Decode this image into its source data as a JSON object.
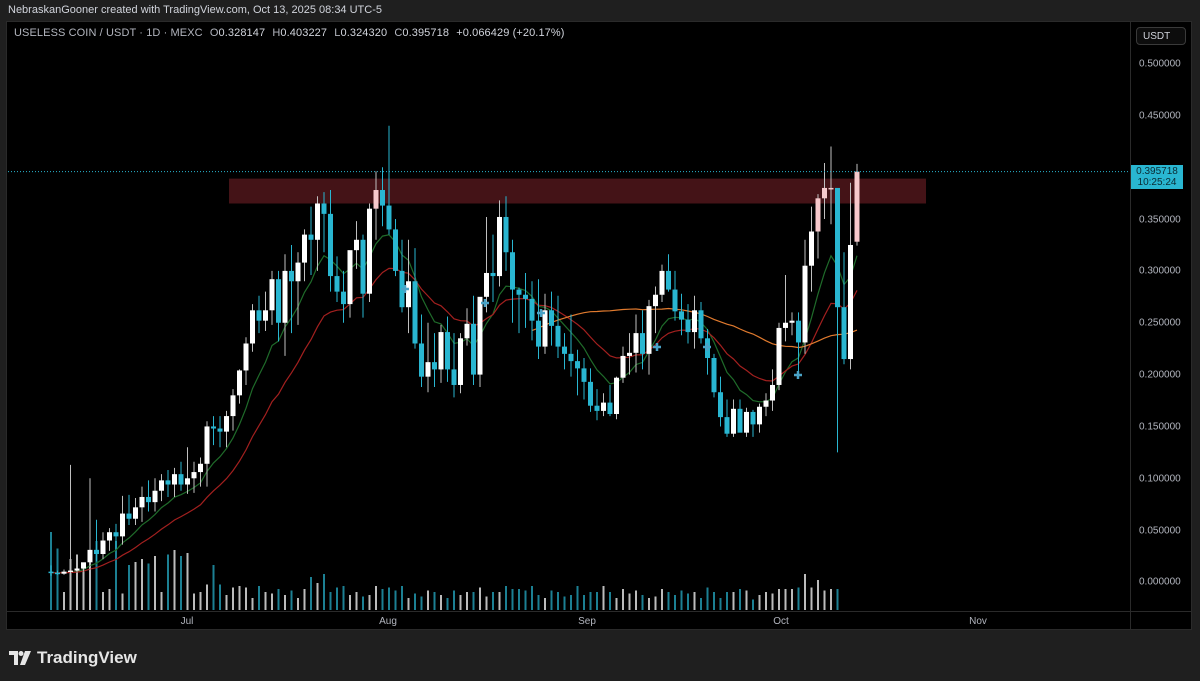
{
  "header": {
    "attribution": "NebraskanGooner created with TradingView.com, Oct 13, 2025 08:34 UTC-5"
  },
  "legend": {
    "symbol": "USELESS COIN / USDT · 1D · MEXC",
    "open_label": "O",
    "open": "0.328147",
    "high_label": "H",
    "high": "0.403227",
    "low_label": "L",
    "low": "0.324320",
    "close_label": "C",
    "close": "0.395718",
    "change": "+0.066429 (+20.17%)"
  },
  "price_axis": {
    "currency_button": "USDT",
    "ticks": [
      "0.500000",
      "0.450000",
      "0.350000",
      "0.300000",
      "0.250000",
      "0.200000",
      "0.150000",
      "0.100000",
      "0.050000",
      "0.000000"
    ],
    "last_price": "0.395718",
    "countdown": "10:25:24"
  },
  "time_axis": {
    "ticks": [
      "Jul",
      "Aug",
      "Sep",
      "Oct",
      "Nov"
    ]
  },
  "footer": {
    "brand": "TradingView"
  },
  "colors": {
    "background": "#000000",
    "frame": "#1f1f1f",
    "up_candle": "#ffffff",
    "down_candle": "#29b6d1",
    "resistance_zone": "#4a1519",
    "ema_short": "#1f6b2a",
    "ema_mid": "#a3201f",
    "ma_long": "#e07a2e",
    "last_price_line": "#29b6d1"
  },
  "chart_data": {
    "type": "candlestick",
    "title": "USELESS COIN / USDT · 1D · MEXC",
    "xlabel": "",
    "ylabel": "USDT",
    "ylim": [
      0,
      0.52
    ],
    "x_ticks": [
      "Jul",
      "Aug",
      "Sep",
      "Oct",
      "Nov"
    ],
    "y_ticks": [
      0.0,
      0.05,
      0.1,
      0.15,
      0.2,
      0.25,
      0.3,
      0.35,
      0.45,
      0.5
    ],
    "grid": false,
    "last": {
      "open": 0.328147,
      "high": 0.403227,
      "low": 0.32432,
      "close": 0.395718,
      "change": 0.066429,
      "change_pct": 20.17
    },
    "annotations": [
      {
        "type": "rectangle",
        "label": "resistance zone",
        "y_from": 0.365,
        "y_to": 0.389,
        "x_from": "Jul 7",
        "x_to": "Oct 24",
        "color": "#4a1519"
      },
      {
        "type": "horizontal_line",
        "label": "last price",
        "y": 0.395718,
        "style": "dotted",
        "color": "#29b6d1"
      }
    ],
    "indicators": [
      {
        "name": "EMA short",
        "color": "#1f6b2a"
      },
      {
        "name": "EMA mid",
        "color": "#a3201f"
      },
      {
        "name": "MA long",
        "color": "#e07a2e",
        "start": "Aug 17"
      }
    ],
    "candles_ohlc": [
      [
        0.01,
        0.016,
        0.006,
        0.009
      ],
      [
        0.009,
        0.011,
        0.007,
        0.008
      ],
      [
        0.008,
        0.012,
        0.007,
        0.01
      ],
      [
        0.01,
        0.113,
        0.008,
        0.011
      ],
      [
        0.011,
        0.018,
        0.009,
        0.013
      ],
      [
        0.013,
        0.016,
        0.01,
        0.019
      ],
      [
        0.019,
        0.1,
        0.012,
        0.031
      ],
      [
        0.031,
        0.06,
        0.02,
        0.027
      ],
      [
        0.027,
        0.048,
        0.022,
        0.04
      ],
      [
        0.04,
        0.052,
        0.03,
        0.048
      ],
      [
        0.048,
        0.056,
        0.032,
        0.044
      ],
      [
        0.044,
        0.083,
        0.036,
        0.066
      ],
      [
        0.066,
        0.084,
        0.055,
        0.061
      ],
      [
        0.061,
        0.081,
        0.055,
        0.072
      ],
      [
        0.072,
        0.092,
        0.058,
        0.082
      ],
      [
        0.082,
        0.098,
        0.068,
        0.077
      ],
      [
        0.077,
        0.1,
        0.068,
        0.088
      ],
      [
        0.088,
        0.104,
        0.078,
        0.098
      ],
      [
        0.098,
        0.108,
        0.082,
        0.094
      ],
      [
        0.094,
        0.11,
        0.082,
        0.104
      ],
      [
        0.104,
        0.116,
        0.088,
        0.094
      ],
      [
        0.094,
        0.13,
        0.085,
        0.1
      ],
      [
        0.1,
        0.116,
        0.086,
        0.106
      ],
      [
        0.106,
        0.12,
        0.092,
        0.114
      ],
      [
        0.114,
        0.155,
        0.092,
        0.15
      ],
      [
        0.15,
        0.16,
        0.132,
        0.148
      ],
      [
        0.148,
        0.16,
        0.13,
        0.145
      ],
      [
        0.145,
        0.165,
        0.13,
        0.16
      ],
      [
        0.16,
        0.186,
        0.146,
        0.18
      ],
      [
        0.18,
        0.205,
        0.172,
        0.204
      ],
      [
        0.204,
        0.236,
        0.19,
        0.23
      ],
      [
        0.23,
        0.268,
        0.222,
        0.262
      ],
      [
        0.262,
        0.276,
        0.24,
        0.252
      ],
      [
        0.252,
        0.28,
        0.242,
        0.262
      ],
      [
        0.262,
        0.3,
        0.248,
        0.292
      ],
      [
        0.292,
        0.3,
        0.232,
        0.25
      ],
      [
        0.25,
        0.316,
        0.218,
        0.3
      ],
      [
        0.3,
        0.325,
        0.24,
        0.29
      ],
      [
        0.29,
        0.318,
        0.248,
        0.308
      ],
      [
        0.308,
        0.34,
        0.29,
        0.335
      ],
      [
        0.335,
        0.362,
        0.296,
        0.33
      ],
      [
        0.33,
        0.372,
        0.3,
        0.365
      ],
      [
        0.365,
        0.376,
        0.318,
        0.355
      ],
      [
        0.355,
        0.378,
        0.28,
        0.295
      ],
      [
        0.295,
        0.314,
        0.27,
        0.28
      ],
      [
        0.28,
        0.3,
        0.25,
        0.268
      ],
      [
        0.268,
        0.29,
        0.255,
        0.32
      ],
      [
        0.32,
        0.348,
        0.302,
        0.33
      ],
      [
        0.33,
        0.335,
        0.255,
        0.278
      ],
      [
        0.278,
        0.365,
        0.27,
        0.36
      ],
      [
        0.36,
        0.396,
        0.33,
        0.378
      ],
      [
        0.378,
        0.4,
        0.343,
        0.363
      ],
      [
        0.363,
        0.44,
        0.335,
        0.34
      ],
      [
        0.34,
        0.35,
        0.295,
        0.3
      ],
      [
        0.3,
        0.33,
        0.26,
        0.265
      ],
      [
        0.265,
        0.33,
        0.24,
        0.29
      ],
      [
        0.29,
        0.322,
        0.225,
        0.23
      ],
      [
        0.23,
        0.258,
        0.188,
        0.198
      ],
      [
        0.198,
        0.25,
        0.183,
        0.212
      ],
      [
        0.212,
        0.24,
        0.188,
        0.205
      ],
      [
        0.205,
        0.248,
        0.192,
        0.241
      ],
      [
        0.241,
        0.256,
        0.193,
        0.205
      ],
      [
        0.205,
        0.24,
        0.178,
        0.19
      ],
      [
        0.19,
        0.24,
        0.182,
        0.235
      ],
      [
        0.235,
        0.264,
        0.228,
        0.249
      ],
      [
        0.249,
        0.276,
        0.19,
        0.2
      ],
      [
        0.2,
        0.246,
        0.188,
        0.275
      ],
      [
        0.275,
        0.352,
        0.26,
        0.298
      ],
      [
        0.298,
        0.335,
        0.27,
        0.295
      ],
      [
        0.295,
        0.368,
        0.285,
        0.352
      ],
      [
        0.352,
        0.372,
        0.3,
        0.318
      ],
      [
        0.318,
        0.33,
        0.25,
        0.282
      ],
      [
        0.282,
        0.284,
        0.24,
        0.277
      ],
      [
        0.277,
        0.298,
        0.245,
        0.273
      ],
      [
        0.273,
        0.29,
        0.233,
        0.252
      ],
      [
        0.252,
        0.292,
        0.215,
        0.227
      ],
      [
        0.227,
        0.278,
        0.22,
        0.262
      ],
      [
        0.262,
        0.28,
        0.228,
        0.247
      ],
      [
        0.247,
        0.276,
        0.216,
        0.227
      ],
      [
        0.227,
        0.24,
        0.205,
        0.22
      ],
      [
        0.22,
        0.258,
        0.198,
        0.213
      ],
      [
        0.213,
        0.224,
        0.18,
        0.206
      ],
      [
        0.206,
        0.216,
        0.176,
        0.193
      ],
      [
        0.193,
        0.206,
        0.164,
        0.17
      ],
      [
        0.17,
        0.186,
        0.156,
        0.165
      ],
      [
        0.165,
        0.182,
        0.16,
        0.173
      ],
      [
        0.173,
        0.19,
        0.16,
        0.162
      ],
      [
        0.162,
        0.198,
        0.157,
        0.197
      ],
      [
        0.197,
        0.227,
        0.192,
        0.218
      ],
      [
        0.218,
        0.24,
        0.2,
        0.221
      ],
      [
        0.221,
        0.258,
        0.202,
        0.24
      ],
      [
        0.24,
        0.262,
        0.205,
        0.22
      ],
      [
        0.22,
        0.272,
        0.2,
        0.266
      ],
      [
        0.266,
        0.285,
        0.24,
        0.277
      ],
      [
        0.277,
        0.306,
        0.27,
        0.3
      ],
      [
        0.3,
        0.316,
        0.28,
        0.282
      ],
      [
        0.282,
        0.3,
        0.252,
        0.261
      ],
      [
        0.261,
        0.278,
        0.238,
        0.253
      ],
      [
        0.253,
        0.268,
        0.23,
        0.241
      ],
      [
        0.241,
        0.276,
        0.225,
        0.262
      ],
      [
        0.262,
        0.27,
        0.23,
        0.235
      ],
      [
        0.235,
        0.244,
        0.2,
        0.216
      ],
      [
        0.216,
        0.22,
        0.178,
        0.183
      ],
      [
        0.183,
        0.198,
        0.15,
        0.159
      ],
      [
        0.159,
        0.176,
        0.14,
        0.143
      ],
      [
        0.143,
        0.176,
        0.14,
        0.167
      ],
      [
        0.167,
        0.176,
        0.145,
        0.144
      ],
      [
        0.144,
        0.168,
        0.14,
        0.164
      ],
      [
        0.164,
        0.166,
        0.14,
        0.152
      ],
      [
        0.152,
        0.172,
        0.144,
        0.169
      ],
      [
        0.169,
        0.182,
        0.16,
        0.175
      ],
      [
        0.175,
        0.205,
        0.165,
        0.19
      ],
      [
        0.19,
        0.25,
        0.185,
        0.245
      ],
      [
        0.245,
        0.296,
        0.232,
        0.25
      ],
      [
        0.25,
        0.26,
        0.238,
        0.252
      ],
      [
        0.252,
        0.26,
        0.2,
        0.231
      ],
      [
        0.231,
        0.33,
        0.22,
        0.305
      ],
      [
        0.305,
        0.362,
        0.28,
        0.338
      ],
      [
        0.338,
        0.374,
        0.312,
        0.37
      ],
      [
        0.37,
        0.404,
        0.35,
        0.38
      ],
      [
        0.38,
        0.42,
        0.345,
        0.38
      ],
      [
        0.38,
        0.375,
        0.125,
        0.265
      ],
      [
        0.265,
        0.318,
        0.21,
        0.215
      ],
      [
        0.215,
        0.385,
        0.205,
        0.325
      ],
      [
        0.328147,
        0.403227,
        0.32432,
        0.395718
      ]
    ],
    "volume": [
      0.52,
      0.41,
      0.12,
      0.34,
      0.37,
      0.3,
      0.4,
      0.46,
      0.12,
      0.14,
      0.46,
      0.11,
      0.3,
      0.32,
      0.34,
      0.31,
      0.36,
      0.12,
      0.37,
      0.4,
      0.36,
      0.38,
      0.11,
      0.12,
      0.17,
      0.3,
      0.17,
      0.1,
      0.15,
      0.16,
      0.15,
      0.08,
      0.16,
      0.12,
      0.11,
      0.14,
      0.1,
      0.13,
      0.08,
      0.14,
      0.22,
      0.18,
      0.24,
      0.12,
      0.15,
      0.16,
      0.1,
      0.12,
      0.09,
      0.1,
      0.16,
      0.14,
      0.15,
      0.13,
      0.16,
      0.08,
      0.11,
      0.09,
      0.13,
      0.12,
      0.1,
      0.08,
      0.13,
      0.1,
      0.12,
      0.12,
      0.15,
      0.09,
      0.12,
      0.12,
      0.16,
      0.14,
      0.14,
      0.13,
      0.16,
      0.1,
      0.08,
      0.13,
      0.12,
      0.09,
      0.1,
      0.16,
      0.1,
      0.12,
      0.12,
      0.16,
      0.12,
      0.08,
      0.14,
      0.11,
      0.13,
      0.1,
      0.08,
      0.09,
      0.14,
      0.12,
      0.1,
      0.13,
      0.11,
      0.12,
      0.08,
      0.15,
      0.12,
      0.08,
      0.12,
      0.12,
      0.14,
      0.13,
      0.07,
      0.1,
      0.12,
      0.11,
      0.14,
      0.14,
      0.14,
      0.15,
      0.24,
      0.15,
      0.2,
      0.13,
      0.14,
      0.14
    ]
  }
}
